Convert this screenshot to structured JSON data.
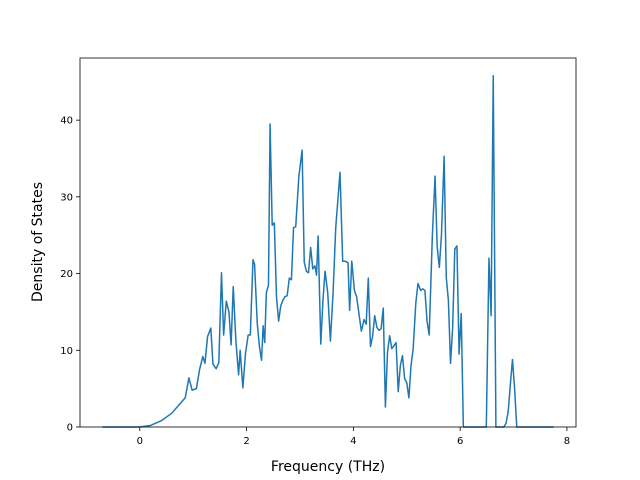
{
  "chart_data": {
    "type": "line",
    "x_label": "Frequency (THz)",
    "y_label": "Density of States",
    "xlim": [
      -1.12,
      8.17
    ],
    "ylim": [
      0,
      48.1
    ],
    "xticks": [
      0,
      2,
      4,
      6,
      8
    ],
    "yticks": [
      0,
      10,
      20,
      30,
      40
    ],
    "grid": false,
    "x": [
      -0.7,
      0,
      0.2,
      0.4,
      0.6,
      0.7,
      0.8,
      0.85,
      0.92,
      0.98,
      1.06,
      1.12,
      1.18,
      1.22,
      1.27,
      1.33,
      1.37,
      1.43,
      1.48,
      1.53,
      1.57,
      1.62,
      1.67,
      1.71,
      1.75,
      1.8,
      1.85,
      1.88,
      1.93,
      1.98,
      2.03,
      2.07,
      2.12,
      2.15,
      2.2,
      2.24,
      2.28,
      2.31,
      2.34,
      2.37,
      2.41,
      2.44,
      2.48,
      2.52,
      2.56,
      2.6,
      2.64,
      2.68,
      2.72,
      2.76,
      2.8,
      2.84,
      2.88,
      2.92,
      2.98,
      3.04,
      3.08,
      3.12,
      3.16,
      3.2,
      3.24,
      3.28,
      3.31,
      3.34,
      3.39,
      3.43,
      3.47,
      3.52,
      3.57,
      3.62,
      3.67,
      3.75,
      3.8,
      3.85,
      3.9,
      3.93,
      3.97,
      4.02,
      4.06,
      4.1,
      4.15,
      4.2,
      4.24,
      4.28,
      4.32,
      4.36,
      4.4,
      4.44,
      4.48,
      4.52,
      4.56,
      4.6,
      4.64,
      4.68,
      4.72,
      4.76,
      4.8,
      4.84,
      4.88,
      4.92,
      4.96,
      5.0,
      5.04,
      5.08,
      5.12,
      5.17,
      5.21,
      5.26,
      5.3,
      5.34,
      5.38,
      5.42,
      5.48,
      5.53,
      5.57,
      5.61,
      5.65,
      5.7,
      5.74,
      5.78,
      5.82,
      5.86,
      5.9,
      5.94,
      5.98,
      6.02,
      6.06,
      6.49,
      6.54,
      6.58,
      6.62,
      6.67,
      6.82,
      6.86,
      6.9,
      6.94,
      6.98,
      7.02,
      7.06,
      7.75
    ],
    "series": [
      {
        "color": "#1f77b4",
        "values": [
          0,
          0,
          0.2,
          0.8,
          1.8,
          2.6,
          3.4,
          3.8,
          6.4,
          4.8,
          5,
          7.5,
          9.2,
          8.3,
          11.8,
          12.9,
          8.2,
          7.6,
          8.4,
          20.1,
          12,
          16.4,
          15,
          10.7,
          18.3,
          11.2,
          6.8,
          10,
          5.1,
          9.6,
          12,
          12,
          21.8,
          21.2,
          13.5,
          10.5,
          8.7,
          13.2,
          11,
          17.5,
          18.5,
          39.5,
          26.3,
          26.6,
          17,
          13.8,
          15.8,
          16.5,
          17,
          17.1,
          19.4,
          19.2,
          26,
          26.1,
          32.7,
          36.1,
          21.5,
          20.3,
          20.1,
          23.4,
          20.6,
          21,
          19.8,
          24.9,
          10.8,
          16.5,
          20.3,
          17.5,
          11.2,
          17.5,
          26,
          33.2,
          21.6,
          21.6,
          21.4,
          15.2,
          21.6,
          17.8,
          17,
          15,
          12.5,
          14,
          13.4,
          19.4,
          10.5,
          11.8,
          14.5,
          13,
          12.6,
          12.8,
          15.5,
          2.6,
          9.8,
          11.9,
          10.2,
          10.6,
          11,
          4.6,
          8,
          9.3,
          6.3,
          5.8,
          3.8,
          8,
          10.2,
          16.2,
          18.7,
          17.8,
          18,
          17.8,
          13.8,
          12,
          25,
          32.7,
          23.5,
          20.8,
          25,
          35.3,
          19.5,
          16.5,
          8.3,
          13,
          23.2,
          23.6,
          9.5,
          14.8,
          0,
          0,
          22,
          14.5,
          45.8,
          0,
          0,
          0.5,
          2,
          5.5,
          8.8,
          5,
          0,
          0
        ]
      }
    ]
  }
}
